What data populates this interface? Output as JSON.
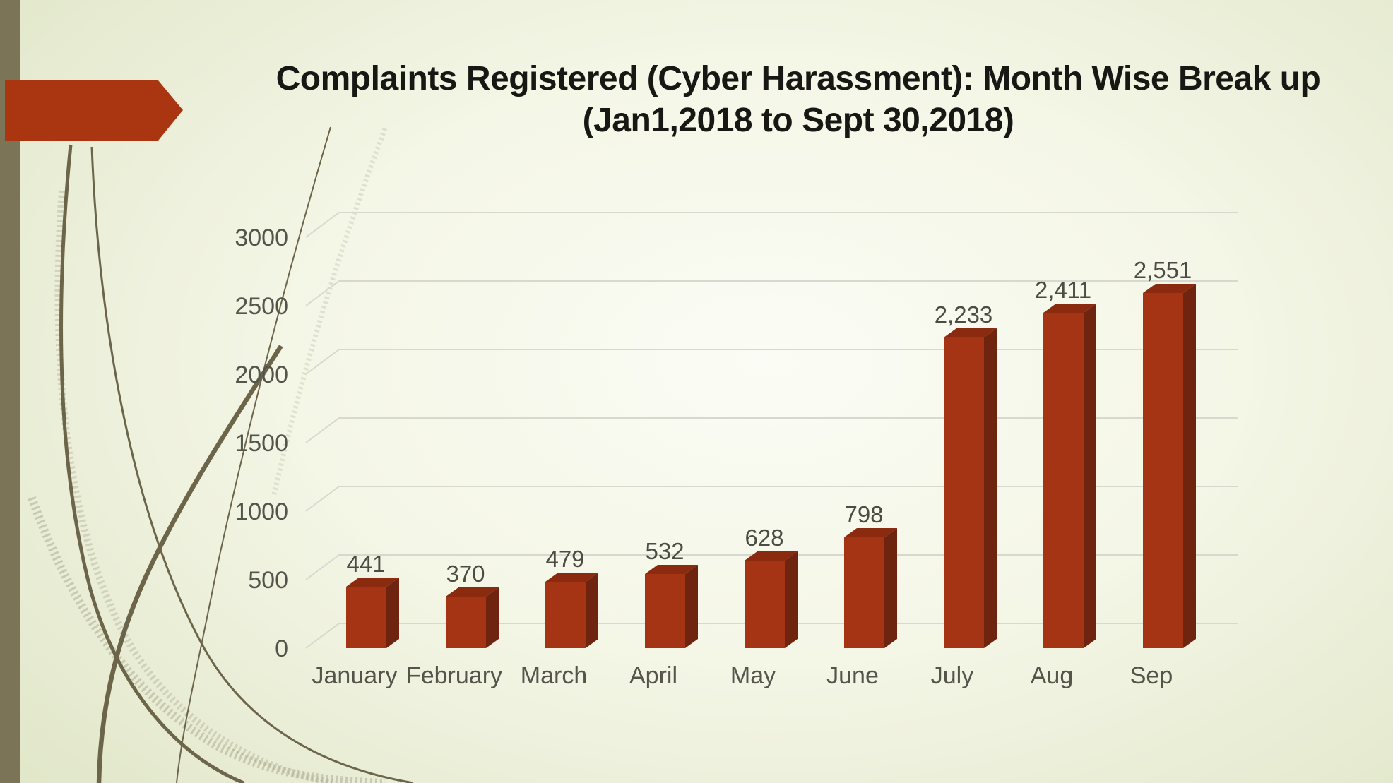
{
  "slide": {
    "title_line1": "Complaints Registered (Cyber Harassment): Month Wise Break up",
    "title_line2": "(Jan1,2018 to Sept 30,2018)"
  },
  "chart_data": {
    "type": "bar",
    "style": "3d-column",
    "title": "Complaints Registered (Cyber Harassment): Month Wise Break up (Jan1,2018 to Sept 30,2018)",
    "categories": [
      "January",
      "February",
      "March",
      "April",
      "May",
      "June",
      "July",
      "Aug",
      "Sep"
    ],
    "values": [
      441,
      370,
      479,
      532,
      628,
      798,
      2233,
      2411,
      2551
    ],
    "value_labels": [
      "441",
      "370",
      "479",
      "532",
      "628",
      "798",
      "2,233",
      "2,411",
      "2,551"
    ],
    "xlabel": "",
    "ylabel": "",
    "y_ticks": [
      0,
      500,
      1000,
      1500,
      2000,
      2500,
      3000
    ],
    "ylim": [
      0,
      3000
    ],
    "grid": true,
    "legend_position": "none",
    "data_labels": true
  },
  "colors": {
    "bar_front": "#A43413",
    "bar_top": "#8A2B10",
    "bar_side": "#6F2410",
    "accent_arrow": "#A93511",
    "left_bar": "#7B7456",
    "gridline": "#D8D9CE",
    "axis_text": "#54544B",
    "value_label_text": "#4C4C45",
    "title_text": "#171714",
    "background_edge": "#DFE5C6",
    "background_center": "#FBFCF5",
    "decorative_curve": "#6C654A"
  }
}
